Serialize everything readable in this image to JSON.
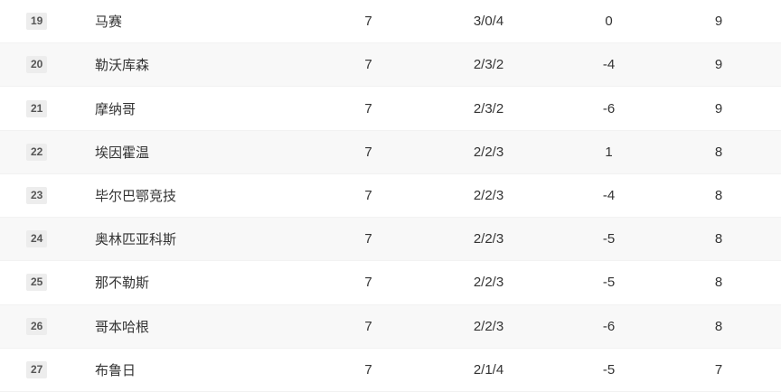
{
  "colors": {
    "row_alt_background": "#f8f8f8",
    "badge_background": "#ededed",
    "badge_text": "#555555",
    "body_text": "#333333"
  },
  "table": {
    "rows": [
      {
        "position": "19",
        "team": "马赛",
        "played": "7",
        "wdl": "3/0/4",
        "goal_diff": "0",
        "points": "9"
      },
      {
        "position": "20",
        "team": "勒沃库森",
        "played": "7",
        "wdl": "2/3/2",
        "goal_diff": "-4",
        "points": "9"
      },
      {
        "position": "21",
        "team": "摩纳哥",
        "played": "7",
        "wdl": "2/3/2",
        "goal_diff": "-6",
        "points": "9"
      },
      {
        "position": "22",
        "team": "埃因霍温",
        "played": "7",
        "wdl": "2/2/3",
        "goal_diff": "1",
        "points": "8"
      },
      {
        "position": "23",
        "team": "毕尔巴鄂竞技",
        "played": "7",
        "wdl": "2/2/3",
        "goal_diff": "-4",
        "points": "8"
      },
      {
        "position": "24",
        "team": "奥林匹亚科斯",
        "played": "7",
        "wdl": "2/2/3",
        "goal_diff": "-5",
        "points": "8"
      },
      {
        "position": "25",
        "team": "那不勒斯",
        "played": "7",
        "wdl": "2/2/3",
        "goal_diff": "-5",
        "points": "8"
      },
      {
        "position": "26",
        "team": "哥本哈根",
        "played": "7",
        "wdl": "2/2/3",
        "goal_diff": "-6",
        "points": "8"
      },
      {
        "position": "27",
        "team": "布鲁日",
        "played": "7",
        "wdl": "2/1/4",
        "goal_diff": "-5",
        "points": "7"
      }
    ]
  }
}
